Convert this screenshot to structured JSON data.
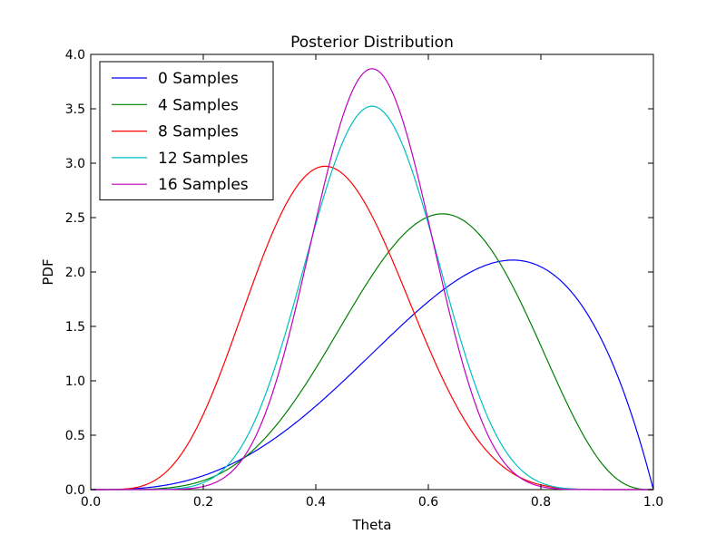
{
  "chart_data": {
    "type": "line",
    "title": "Posterior Distribution",
    "xlabel": "Theta",
    "ylabel": "PDF",
    "xlim": [
      0,
      1
    ],
    "ylim": [
      0,
      4
    ],
    "xticks": [
      "0.0",
      "0.2",
      "0.4",
      "0.6",
      "0.8",
      "1.0"
    ],
    "yticks": [
      "0.0",
      "0.5",
      "1.0",
      "1.5",
      "2.0",
      "2.5",
      "3.0",
      "3.5",
      "4.0"
    ],
    "grid": false,
    "legend": "top-left",
    "series": [
      {
        "name": "0 Samples",
        "color": "#0000ff",
        "alpha": 4,
        "beta": 2
      },
      {
        "name": "4 Samples",
        "color": "#008000",
        "alpha": 6,
        "beta": 4
      },
      {
        "name": "8 Samples",
        "color": "#ff0000",
        "alpha": 6,
        "beta": 8
      },
      {
        "name": "12 Samples",
        "color": "#00bfbf",
        "alpha": 10,
        "beta": 10
      },
      {
        "name": "16 Samples",
        "color": "#bf00bf",
        "alpha": 12,
        "beta": 12
      }
    ]
  }
}
